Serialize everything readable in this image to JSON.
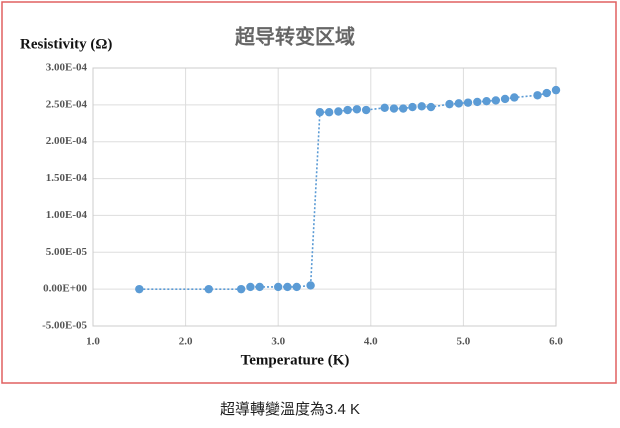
{
  "chart_data": {
    "type": "scatter",
    "title": "超导转变区域",
    "ylabel": "Resistivity (Ω)",
    "xlabel": "Temperature (K)",
    "x": [
      1.5,
      2.25,
      2.6,
      2.7,
      2.8,
      3.0,
      3.1,
      3.2,
      3.35,
      3.45,
      3.55,
      3.65,
      3.75,
      3.85,
      3.95,
      4.15,
      4.25,
      4.35,
      4.45,
      4.55,
      4.65,
      4.85,
      4.95,
      5.05,
      5.15,
      5.25,
      5.35,
      5.45,
      5.55,
      5.8,
      5.9,
      6.0
    ],
    "values": [
      0,
      0,
      0,
      3e-06,
      3e-06,
      3e-06,
      3e-06,
      3e-06,
      5e-06,
      0.00024,
      0.00024,
      0.000241,
      0.000243,
      0.000244,
      0.000243,
      0.000246,
      0.000245,
      0.000245,
      0.000247,
      0.000248,
      0.000247,
      0.000251,
      0.000252,
      0.000253,
      0.000254,
      0.000255,
      0.000256,
      0.000258,
      0.00026,
      0.000263,
      0.000266,
      0.00027
    ],
    "color": "#5b9bd5",
    "line_style": "dotted",
    "xlim": [
      1,
      6
    ],
    "xticks": [
      {
        "value": 1,
        "label": "1.0"
      },
      {
        "value": 2,
        "label": "2.0"
      },
      {
        "value": 3,
        "label": "3.0"
      },
      {
        "value": 4,
        "label": "4.0"
      },
      {
        "value": 5,
        "label": "5.0"
      },
      {
        "value": 6,
        "label": "6.0"
      }
    ],
    "ylim": [
      -5e-05,
      0.0003
    ],
    "yticks": [
      {
        "value": -5e-05,
        "label": "-5.00E-05"
      },
      {
        "value": 0,
        "label": "0.00E+00"
      },
      {
        "value": 5e-05,
        "label": "5.00E-05"
      },
      {
        "value": 0.0001,
        "label": "1.00E-04"
      },
      {
        "value": 0.00015,
        "label": "1.50E-04"
      },
      {
        "value": 0.0002,
        "label": "2.00E-04"
      },
      {
        "value": 0.00025,
        "label": "2.50E-04"
      },
      {
        "value": 0.0003,
        "label": "3.00E-04"
      }
    ],
    "grid": true
  },
  "caption": "超導轉變溫度為3.4 K"
}
